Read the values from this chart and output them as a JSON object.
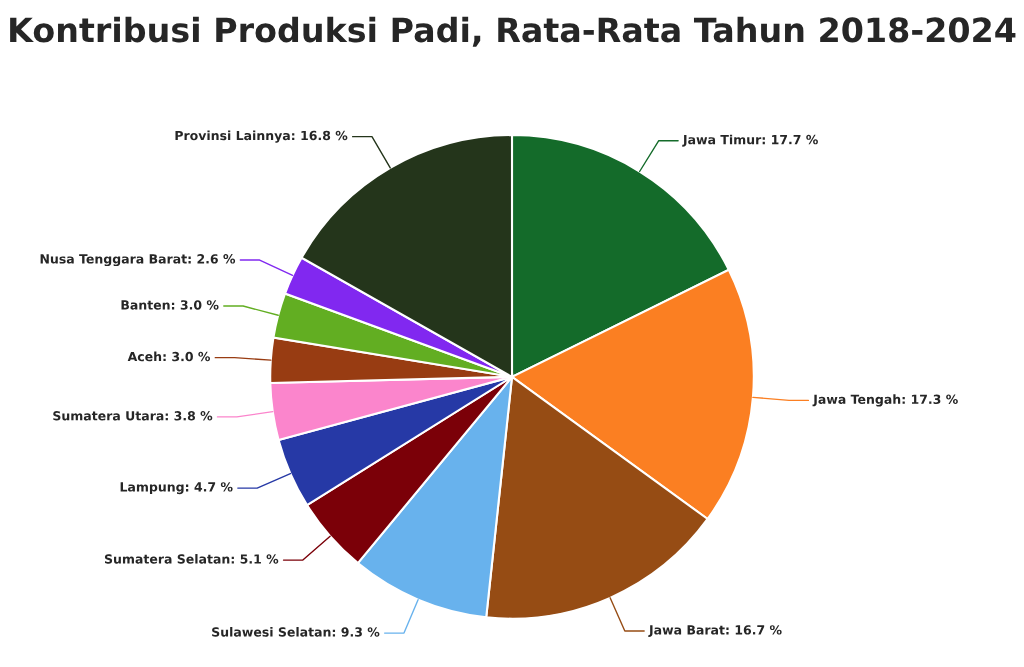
{
  "chart_data": {
    "type": "pie",
    "title": "Kontribusi Produksi Padi, Rata-Rata Tahun 2018-2024",
    "categories": [
      "Jawa Timur",
      "Jawa Tengah",
      "Jawa Barat",
      "Sulawesi Selatan",
      "Sumatera Selatan",
      "Lampung",
      "Sumatera Utara",
      "Aceh",
      "Banten",
      "Nusa Tenggara Barat",
      "Provinsi Lainnya"
    ],
    "values": [
      17.7,
      17.3,
      16.7,
      9.3,
      5.1,
      4.7,
      3.8,
      3.0,
      3.0,
      2.6,
      16.8
    ],
    "value_labels": [
      "17.7 %",
      "17.3 %",
      "16.7 %",
      "9.3 %",
      "5.1 %",
      "4.7 %",
      "3.8 %",
      "3.0 %",
      "3.0 %",
      "2.6 %",
      "16.8 %"
    ],
    "colors": [
      "#146b2a",
      "#fb7f22",
      "#964c14",
      "#68b2ed",
      "#7b0008",
      "#2639a6",
      "#fb85cc",
      "#983c12",
      "#62ae22",
      "#8128f0",
      "#24351b"
    ],
    "legend": false
  }
}
